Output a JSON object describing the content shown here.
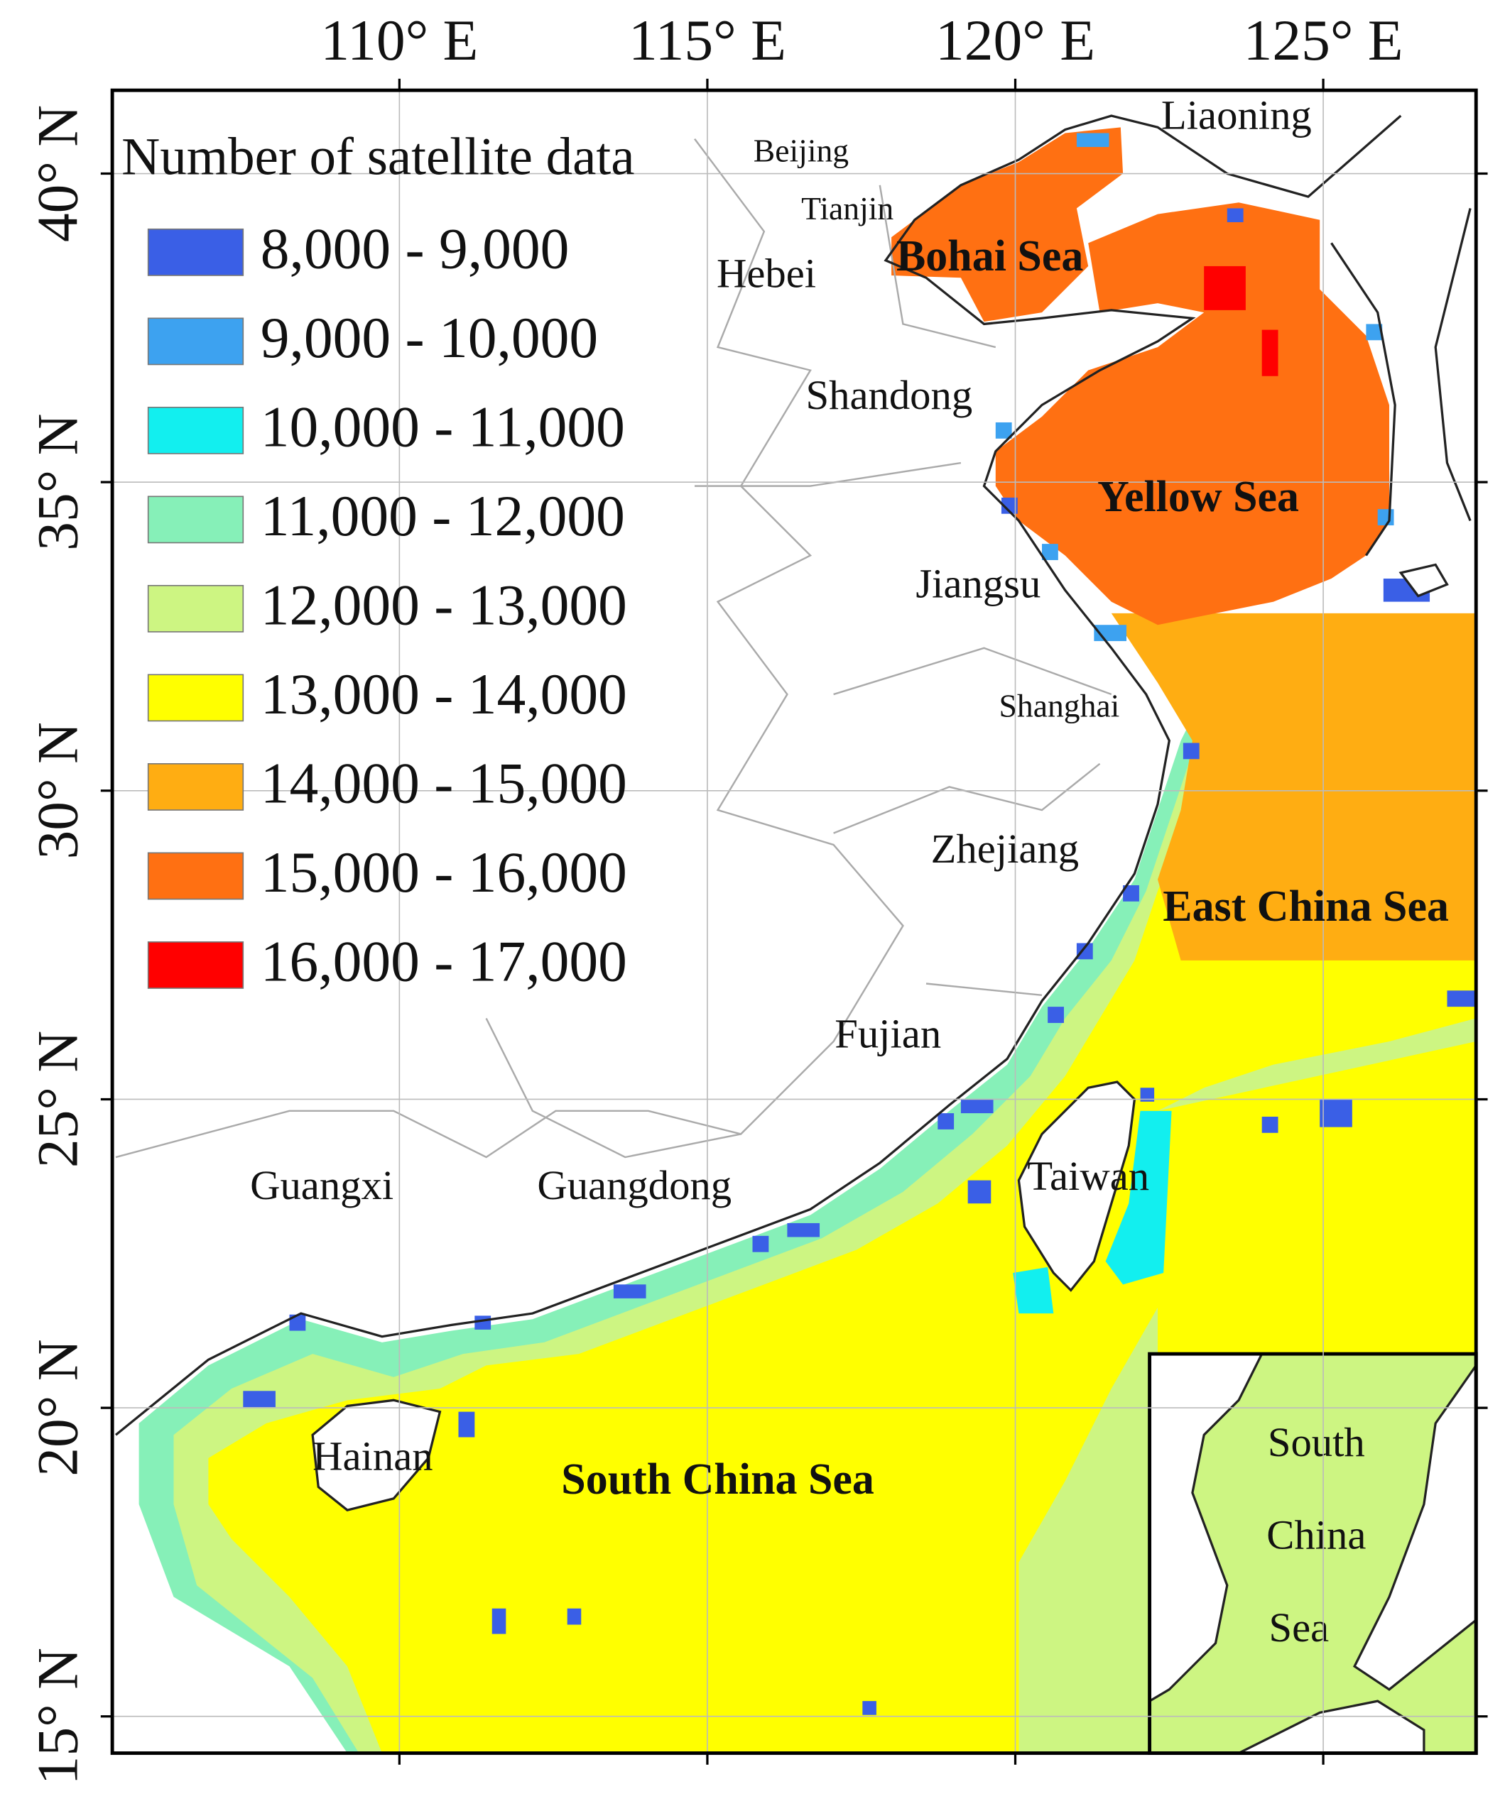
{
  "map": {
    "legend": {
      "title": "Number of satellite data",
      "items": [
        {
          "label": "8,000 - 9,000",
          "color": "#3a5fe6"
        },
        {
          "label": "9,000 - 10,000",
          "color": "#3da2f0"
        },
        {
          "label": "10,000 - 11,000",
          "color": "#12efef"
        },
        {
          "label": "11,000 - 12,000",
          "color": "#86f0b8"
        },
        {
          "label": "12,000 - 13,000",
          "color": "#cdf582"
        },
        {
          "label": "13,000 - 14,000",
          "color": "#ffff00"
        },
        {
          "label": "14,000 - 15,000",
          "color": "#ffad12"
        },
        {
          "label": "15,000 - 16,000",
          "color": "#ff7012"
        },
        {
          "label": "16,000 - 17,000",
          "color": "#ff0000"
        }
      ]
    },
    "longitude_ticks": [
      {
        "value": 110,
        "label": "110° E"
      },
      {
        "value": 115,
        "label": "115° E"
      },
      {
        "value": 120,
        "label": "120° E"
      },
      {
        "value": 125,
        "label": "125° E"
      }
    ],
    "latitude_ticks": [
      {
        "value": 40,
        "label": "40° N"
      },
      {
        "value": 35,
        "label": "35° N"
      },
      {
        "value": 30,
        "label": "30° N"
      },
      {
        "value": 25,
        "label": "25° N"
      },
      {
        "value": 20,
        "label": "20° N"
      },
      {
        "value": 15,
        "label": "15° N"
      }
    ],
    "provinces": [
      "Liaoning",
      "Beijing",
      "Tianjin",
      "Hebei",
      "Shandong",
      "Jiangsu",
      "Shanghai",
      "Zhejiang",
      "Fujian",
      "Guangxi",
      "Guangdong",
      "Taiwan",
      "Hainan"
    ],
    "seas": [
      "Bohai Sea",
      "Yellow Sea",
      "East China Sea",
      "South China Sea"
    ],
    "inset": {
      "labels": [
        "South",
        "China",
        "Sea"
      ]
    }
  }
}
